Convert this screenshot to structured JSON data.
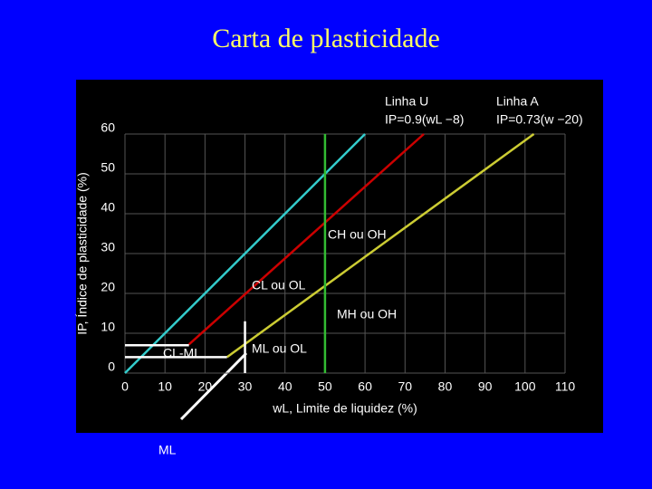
{
  "chart_data": {
    "type": "line",
    "title": "Carta de plasticidade",
    "x_label": "wL, Limite de liquidez (%)",
    "y_label": "IP, Índice de plasticidade (%)",
    "xlim": [
      0,
      110
    ],
    "ylim": [
      0,
      60
    ],
    "xticks": [
      0,
      10,
      20,
      30,
      40,
      50,
      60,
      70,
      80,
      90,
      100,
      110
    ],
    "yticks": [
      0,
      10,
      20,
      30,
      40,
      50,
      60
    ],
    "grid": true,
    "series": [
      {
        "color": "#33cccc",
        "x": [
          0,
          60
        ],
        "values": [
          0,
          60
        ]
      },
      {
        "color": "#cc0000",
        "x": [
          16,
          74.7
        ],
        "values": [
          7.2,
          60
        ]
      },
      {
        "color": "#cccc33",
        "x": [
          25.5,
          102.2
        ],
        "values": [
          4,
          60
        ]
      },
      {
        "color": "#33bb33",
        "x": [
          50,
          50
        ],
        "values": [
          0,
          60
        ]
      },
      {
        "color": "#ffffff",
        "x": [
          0,
          25.5
        ],
        "values": [
          4,
          4
        ]
      },
      {
        "color": "#ffffff",
        "x": [
          0,
          16
        ],
        "values": [
          7,
          7
        ]
      },
      {
        "color": "#ffffff",
        "x": [
          30,
          30
        ],
        "values": [
          0,
          13
        ]
      }
    ],
    "annotations": [
      "Linha U",
      "IP=0.9(wL −8)",
      "Linha A",
      "IP=0.73(w −20)",
      "CH ou OH",
      "CL ou OL",
      "MH ou OH",
      "ML ou OL",
      "CL-ML",
      "ML"
    ]
  }
}
